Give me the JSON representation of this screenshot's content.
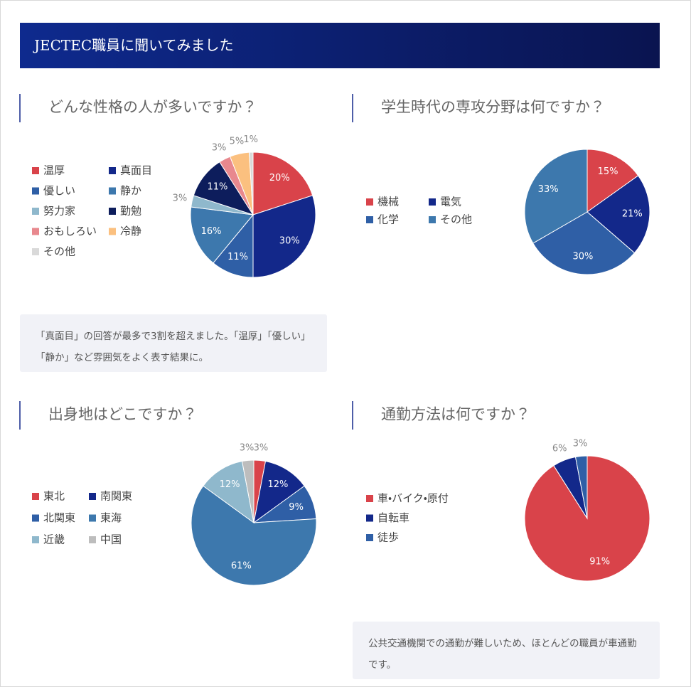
{
  "header": {
    "title": "JECTEC職員に聞いてみました"
  },
  "notes": [
    "「真面目」の回答が最多で3割を超えました。「温厚」「優しい」「静か」など雰囲気をよく表す結果に。",
    "公共交通機関での通勤が難しいため、ほとんどの職員が車通勤です。"
  ],
  "chart_data": [
    {
      "type": "pie",
      "title": "どんな性格の人が多いですか？",
      "categories": [
        "温厚",
        "真面目",
        "優しい",
        "静か",
        "努力家",
        "勤勉",
        "おもしろい",
        "冷静",
        "その他"
      ],
      "values": [
        20,
        30,
        11,
        16,
        3,
        11,
        3,
        5,
        1
      ],
      "value_labels": [
        "20%",
        "30%",
        "11%",
        "16%",
        "3%",
        "11%",
        "3%",
        "5%",
        "1%"
      ],
      "colors": [
        "#d9434a",
        "#13288a",
        "#2f5fa6",
        "#3d78ad",
        "#8fb8cc",
        "#0d1d5c",
        "#e8888e",
        "#fbc07f",
        "#d9d9d9"
      ]
    },
    {
      "type": "pie",
      "title": "学生時代の専攻分野は何ですか？",
      "categories": [
        "機械",
        "電気",
        "化学",
        "その他"
      ],
      "values": [
        15,
        21,
        30,
        33
      ],
      "value_labels": [
        "15%",
        "21%",
        "30%",
        "33%"
      ],
      "colors": [
        "#d9434a",
        "#13288a",
        "#2f5fa6",
        "#3d78ad"
      ]
    },
    {
      "type": "pie",
      "title": "出身地はどこですか？",
      "categories": [
        "東北",
        "南関東",
        "北関東",
        "東海",
        "近畿",
        "中国"
      ],
      "values": [
        3,
        12,
        9,
        61,
        12,
        3
      ],
      "value_labels": [
        "3%",
        "12%",
        "9%",
        "61%",
        "12%",
        "3%"
      ],
      "colors": [
        "#d9434a",
        "#13288a",
        "#2f5fa6",
        "#3d78ad",
        "#8fb8cc",
        "#bdbdbd"
      ]
    },
    {
      "type": "pie",
      "title": "通勤方法は何ですか？",
      "categories": [
        "車・バイク・原付",
        "自転車",
        "徒歩"
      ],
      "values": [
        91,
        6,
        3
      ],
      "value_labels": [
        "91%",
        "6%",
        "3%"
      ],
      "colors": [
        "#d9434a",
        "#13288a",
        "#2f5fa6"
      ]
    }
  ]
}
